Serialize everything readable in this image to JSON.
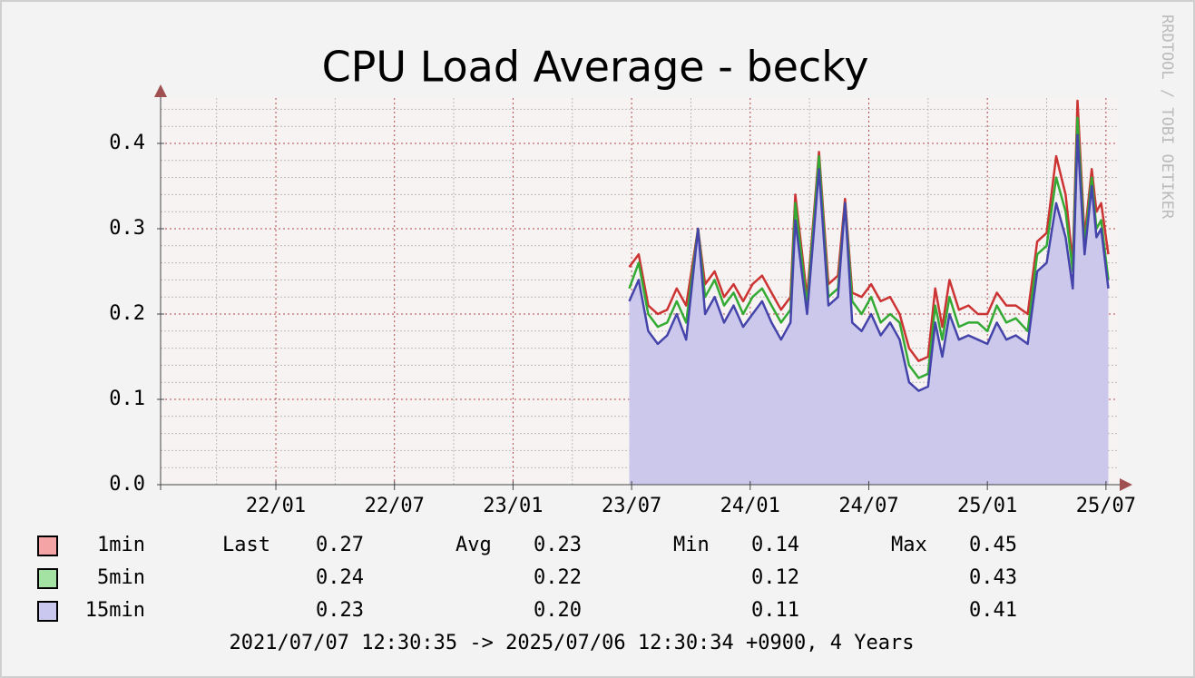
{
  "chart_data": {
    "type": "line",
    "title": "CPU Load Average - becky",
    "watermark": "RRDTOOL / TOBI OETIKER",
    "period": "2021/07/07 12:30:35 -> 2025/07/06 12:30:34 +0900, 4 Years",
    "stat_labels": [
      "Last",
      "Avg",
      "Min",
      "Max"
    ],
    "xlim": [
      2021.514,
      2025.512
    ],
    "xticks": [
      {
        "value": 2022.0,
        "label": "22/01"
      },
      {
        "value": 2022.5,
        "label": "22/07"
      },
      {
        "value": 2023.0,
        "label": "23/01"
      },
      {
        "value": 2023.5,
        "label": "23/07"
      },
      {
        "value": 2024.0,
        "label": "24/01"
      },
      {
        "value": 2024.5,
        "label": "24/07"
      },
      {
        "value": 2025.0,
        "label": "25/01"
      },
      {
        "value": 2025.5,
        "label": "25/07"
      }
    ],
    "xminorticks": [
      2021.75,
      2022.25,
      2022.75,
      2023.25,
      2023.75,
      2024.25,
      2024.75,
      2025.25
    ],
    "ylim": [
      0,
      0.45
    ],
    "yticks": [
      {
        "value": 0,
        "label": "0.0"
      },
      {
        "value": 0.1,
        "label": "0.1"
      },
      {
        "value": 0.2,
        "label": "0.2"
      },
      {
        "value": 0.3,
        "label": "0.3"
      },
      {
        "value": 0.4,
        "label": "0.4"
      }
    ],
    "yminorticks": [
      0.02,
      0.04,
      0.06,
      0.08,
      0.12,
      0.14,
      0.16,
      0.18,
      0.22,
      0.24,
      0.26,
      0.28,
      0.32,
      0.34,
      0.36,
      0.38,
      0.42,
      0.44
    ],
    "grid": true,
    "area_color": "#cbc8ec",
    "x": [
      2023.49,
      2023.53,
      2023.57,
      2023.61,
      2023.65,
      2023.69,
      2023.73,
      2023.78,
      2023.81,
      2023.85,
      2023.89,
      2023.93,
      2023.97,
      2024.01,
      2024.05,
      2024.09,
      2024.13,
      2024.17,
      2024.19,
      2024.24,
      2024.29,
      2024.33,
      2024.37,
      2024.4,
      2024.43,
      2024.47,
      2024.51,
      2024.55,
      2024.59,
      2024.63,
      2024.67,
      2024.71,
      2024.75,
      2024.78,
      2024.81,
      2024.84,
      2024.88,
      2024.92,
      2024.96,
      2025.0,
      2025.04,
      2025.08,
      2025.12,
      2025.17,
      2025.21,
      2025.25,
      2025.29,
      2025.33,
      2025.36,
      2025.38,
      2025.41,
      2025.44,
      2025.46,
      2025.48,
      2025.51
    ],
    "series": [
      {
        "name": "1min",
        "color": "#cc3333",
        "swatch": "#f4a4a4",
        "stats": [
          "0.27",
          "0.23",
          "0.14",
          "0.45"
        ],
        "values": [
          0.255,
          0.27,
          0.21,
          0.2,
          0.205,
          0.23,
          0.21,
          0.3,
          0.235,
          0.25,
          0.22,
          0.235,
          0.215,
          0.235,
          0.245,
          0.225,
          0.205,
          0.22,
          0.34,
          0.22,
          0.39,
          0.235,
          0.245,
          0.335,
          0.225,
          0.22,
          0.235,
          0.215,
          0.22,
          0.2,
          0.16,
          0.145,
          0.15,
          0.23,
          0.185,
          0.24,
          0.205,
          0.21,
          0.2,
          0.2,
          0.225,
          0.21,
          0.21,
          0.2,
          0.285,
          0.295,
          0.385,
          0.34,
          0.26,
          0.45,
          0.29,
          0.37,
          0.32,
          0.33,
          0.27
        ]
      },
      {
        "name": "5min",
        "color": "#33aa33",
        "swatch": "#a4e2a4",
        "stats": [
          "0.24",
          "0.22",
          "0.12",
          "0.43"
        ],
        "values": [
          0.23,
          0.26,
          0.2,
          0.185,
          0.19,
          0.215,
          0.19,
          0.3,
          0.22,
          0.24,
          0.21,
          0.225,
          0.2,
          0.22,
          0.23,
          0.21,
          0.19,
          0.205,
          0.33,
          0.21,
          0.385,
          0.22,
          0.23,
          0.33,
          0.215,
          0.2,
          0.22,
          0.19,
          0.2,
          0.19,
          0.14,
          0.125,
          0.13,
          0.21,
          0.17,
          0.22,
          0.185,
          0.19,
          0.19,
          0.18,
          0.21,
          0.19,
          0.195,
          0.18,
          0.27,
          0.28,
          0.36,
          0.32,
          0.25,
          0.43,
          0.28,
          0.36,
          0.3,
          0.31,
          0.24
        ]
      },
      {
        "name": "15min",
        "color": "#4444aa",
        "swatch": "#cbc8f0",
        "stats": [
          "0.23",
          "0.20",
          "0.11",
          "0.41"
        ],
        "values": [
          0.215,
          0.24,
          0.18,
          0.165,
          0.175,
          0.2,
          0.17,
          0.3,
          0.2,
          0.22,
          0.19,
          0.21,
          0.185,
          0.2,
          0.215,
          0.19,
          0.17,
          0.19,
          0.31,
          0.2,
          0.37,
          0.21,
          0.22,
          0.33,
          0.19,
          0.18,
          0.2,
          0.175,
          0.19,
          0.17,
          0.12,
          0.11,
          0.115,
          0.19,
          0.15,
          0.2,
          0.17,
          0.175,
          0.17,
          0.165,
          0.19,
          0.17,
          0.175,
          0.165,
          0.25,
          0.26,
          0.33,
          0.29,
          0.23,
          0.41,
          0.27,
          0.35,
          0.29,
          0.3,
          0.23
        ]
      }
    ]
  }
}
